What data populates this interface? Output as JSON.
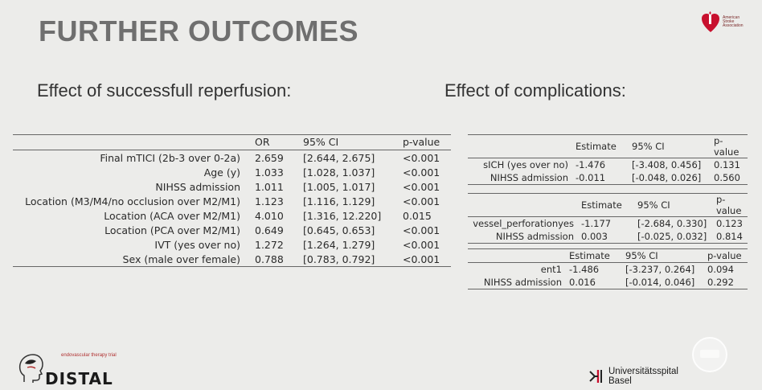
{
  "slide": {
    "title": "FURTHER OUTCOMES",
    "left_heading": "Effect of successfull reperfusion:",
    "right_heading": "Effect of complications:"
  },
  "main_table": {
    "headers": [
      "",
      "OR",
      "95% CI",
      "p-value"
    ],
    "rows": [
      {
        "label": "Final mTICI (2b-3 over 0-2a)",
        "or": "2.659",
        "ci": "[2.644, 2.675]",
        "p": "<0.001"
      },
      {
        "label": "Age (y)",
        "or": "1.033",
        "ci": "[1.028, 1.037]",
        "p": "<0.001"
      },
      {
        "label": "NIHSS admission",
        "or": "1.011",
        "ci": "[1.005, 1.017]",
        "p": "<0.001"
      },
      {
        "label": "Location (M3/M4/no occlusion over M2/M1)",
        "or": "1.123",
        "ci": "[1.116, 1.129]",
        "p": "<0.001"
      },
      {
        "label": "Location (ACA over M2/M1)",
        "or": "4.010",
        "ci": "[1.316, 12.220]",
        "p": "0.015"
      },
      {
        "label": "Location (PCA over M2/M1)",
        "or": "0.649",
        "ci": "[0.645, 0.653]",
        "p": "<0.001"
      },
      {
        "label": "IVT (yes over no)",
        "or": "1.272",
        "ci": "[1.264, 1.279]",
        "p": "<0.001"
      },
      {
        "label": "Sex (male over female)",
        "or": "0.788",
        "ci": "[0.783, 0.792]",
        "p": "<0.001"
      }
    ]
  },
  "complication_tables": [
    {
      "headers": [
        "",
        "Estimate",
        "95% CI",
        "p-value"
      ],
      "rows": [
        {
          "label": "sICH (yes over no)",
          "est": "-1.476",
          "ci": "[-3.408, 0.456]",
          "p": "0.131"
        },
        {
          "label": "NIHSS admission",
          "est": "-0.011",
          "ci": "[-0.048, 0.026]",
          "p": "0.560"
        }
      ]
    },
    {
      "headers": [
        "",
        "Estimate",
        "95% CI",
        "p-value"
      ],
      "rows": [
        {
          "label": "vessel_perforationyes",
          "est": "-1.177",
          "ci": "[-2.684, 0.330]",
          "p": "0.123"
        },
        {
          "label": "NIHSS admission",
          "est": "0.003",
          "ci": "[-0.025, 0.032]",
          "p": "0.814"
        }
      ]
    },
    {
      "headers": [
        "",
        "Estimate",
        "95% CI",
        "p-value"
      ],
      "rows": [
        {
          "label": "ent1",
          "est": "-1.486",
          "ci": "[-3.237, 0.264]",
          "p": "0.094"
        },
        {
          "label": "NIHSS admission",
          "est": "0.016",
          "ci": "[-0.014, 0.046]",
          "p": "0.292"
        }
      ]
    }
  ],
  "logos": {
    "aha": {
      "text": "American Stroke Association",
      "icon": "heart-torch-icon",
      "color": "#c8102e"
    },
    "distal": {
      "small": "endovascular therapy trial",
      "name": "DISTAL",
      "accent": "#b03030"
    },
    "usb": {
      "line1": "Universitätsspital",
      "line2": "Basel"
    }
  }
}
